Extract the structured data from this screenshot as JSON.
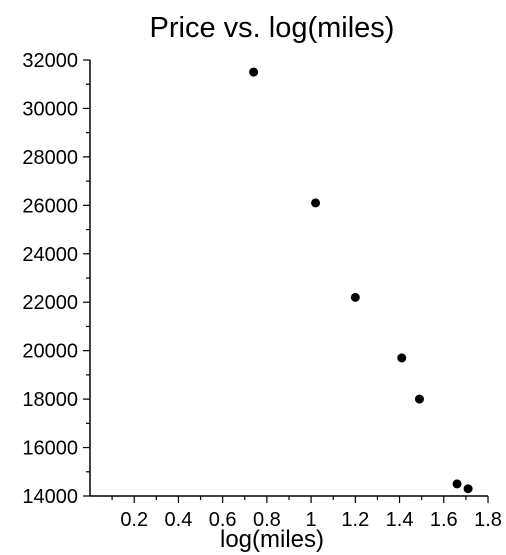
{
  "chart_data": {
    "type": "scatter",
    "title": "Price vs. log(miles)",
    "xlabel": "log(miles)",
    "ylabel": "",
    "xlim": [
      0,
      1.8
    ],
    "ylim": [
      14000,
      32000
    ],
    "xticks": [
      0.2,
      0.4,
      0.6,
      0.8,
      1,
      1.2,
      1.4,
      1.6,
      1.8
    ],
    "xtick_labels": [
      "0.2",
      "0.4",
      "0.6",
      "0.8",
      "1",
      "1.2",
      "1.4",
      "1.6",
      "1.8"
    ],
    "yticks": [
      14000,
      16000,
      18000,
      20000,
      22000,
      24000,
      26000,
      28000,
      30000,
      32000
    ],
    "ytick_labels": [
      "14000",
      "16000",
      "18000",
      "20000",
      "22000",
      "24000",
      "26000",
      "28000",
      "30000",
      "32000"
    ],
    "grid": false,
    "points": [
      {
        "x": 0.74,
        "y": 31500
      },
      {
        "x": 1.02,
        "y": 26100
      },
      {
        "x": 1.2,
        "y": 22200
      },
      {
        "x": 1.41,
        "y": 19700
      },
      {
        "x": 1.49,
        "y": 18000
      },
      {
        "x": 1.66,
        "y": 14500
      },
      {
        "x": 1.71,
        "y": 14300
      }
    ],
    "marker_color": "#000000"
  }
}
